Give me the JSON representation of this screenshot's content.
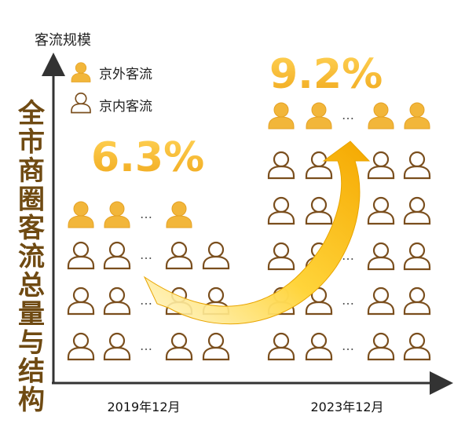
{
  "chart_data": {
    "type": "pictograph",
    "y_axis_label": "客流规模",
    "side_title": "全市商圈客流总量与结构",
    "categories": [
      "2019年12月",
      "2023年12月"
    ],
    "series": [
      {
        "name": "京外客流",
        "color": "#f2b63a"
      },
      {
        "name": "京内客流",
        "color": "#7a4e1d"
      }
    ],
    "shares": [
      {
        "category": "2019年12月",
        "label": "6.3%",
        "value": 6.3
      },
      {
        "category": "2023年12月",
        "label": "9.2%",
        "value": 9.2
      }
    ],
    "ellipsis": "…"
  },
  "colors": {
    "accent": "#f2b63a",
    "brown": "#7a4e1d",
    "axis": "#333333",
    "title": "#6f4a12"
  }
}
